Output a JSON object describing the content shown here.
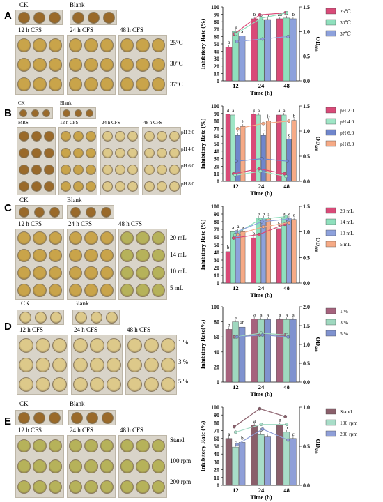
{
  "figure_labels": [
    "A",
    "B",
    "C",
    "D",
    "E"
  ],
  "axis_labels": {
    "x": "Time (h)",
    "y_primary": "Inhibitory Rate (%)",
    "y_primary_d": "Inhibitory Rate(%)",
    "y_secondary_main": "OD",
    "y_secondary_sub": "600"
  },
  "photo_labels": {
    "ck": "CK",
    "blank": "Blank",
    "mrs": "MRS",
    "h12": "12 h CFS",
    "h24": "24 h CFS",
    "h48": "48 h CFS"
  },
  "row_labels": {
    "A": [
      "25°C",
      "30°C",
      "37°C"
    ],
    "B": [
      "pH 2.0",
      "pH 4.0",
      "pH 6.0",
      "pH 8.0"
    ],
    "C": [
      "20 mL",
      "14 mL",
      "10 mL",
      "5 mL"
    ],
    "D": [
      "1 %",
      "3 %",
      "5 %"
    ],
    "E": [
      "Stand",
      "100 rpm",
      "200 rpm"
    ]
  },
  "photo_colors": {
    "well_brown": "#9a6a2a",
    "well_yellow": "#c9a44a",
    "well_light": "#ddc98a",
    "well_green": "#b6b25a"
  },
  "chart_data": [
    {
      "panel": "A",
      "type": "bar",
      "categories": [
        "12",
        "24",
        "48"
      ],
      "xlabel": "Time (h)",
      "ylabel": "Inhibitory Rate (%)",
      "ylabel2": "OD600",
      "ylim": [
        0,
        100
      ],
      "yticks": [
        0,
        10,
        20,
        30,
        40,
        50,
        60,
        70,
        80,
        90,
        100
      ],
      "y2lim": [
        0,
        1.5
      ],
      "y2ticks": [
        "0.0",
        "0.5",
        "1.0",
        "1.5"
      ],
      "legend": "right",
      "series": [
        {
          "name": "25℃",
          "color": "#d94a78",
          "values": [
            46,
            84,
            84
          ],
          "letters": [
            "b",
            "b",
            "ab"
          ],
          "od": [
            0.95,
            1.34,
            1.38
          ]
        },
        {
          "name": "30℃",
          "color": "#8fe0bd",
          "values": [
            67,
            83,
            85
          ],
          "letters": [
            "a",
            "b",
            "a"
          ],
          "od": [
            0.95,
            1.27,
            1.38
          ]
        },
        {
          "name": "37℃",
          "color": "#8da1dc",
          "values": [
            61,
            83,
            84
          ],
          "letters": [
            "a",
            "b",
            "b"
          ],
          "od": [
            0.8,
            0.85,
            0.9
          ]
        }
      ]
    },
    {
      "panel": "B",
      "type": "bar",
      "categories": [
        "12",
        "24",
        "48"
      ],
      "xlabel": "Time (h)",
      "ylabel": "Inhibitory Rate (%)",
      "ylabel2": "OD600",
      "ylim": [
        0,
        100
      ],
      "yticks": [
        0,
        10,
        20,
        30,
        40,
        50,
        60,
        70,
        80,
        90,
        100
      ],
      "y2lim": [
        0,
        1.5
      ],
      "y2ticks": [
        "0.0",
        "0.5",
        "1.0",
        "1.5"
      ],
      "legend": "right",
      "series": [
        {
          "name": "pH 2.0",
          "color": "#d94a78",
          "values": [
            89,
            89,
            88
          ],
          "letters": [
            "a",
            "a",
            "a"
          ],
          "od": [
            0.15,
            0.25,
            0.15
          ]
        },
        {
          "name": "pH 4.0",
          "color": "#9fe6c6",
          "values": [
            88,
            88,
            88
          ],
          "letters": [
            "a",
            "a",
            "a"
          ],
          "od": [
            0.12,
            0.2,
            0.1
          ]
        },
        {
          "name": "pH 6.0",
          "color": "#6f86cc",
          "values": [
            61,
            61,
            56
          ],
          "letters": [
            "c",
            "c",
            "c"
          ],
          "od": [
            0.4,
            0.45,
            0.4
          ]
        },
        {
          "name": "pH 8.0",
          "color": "#f6aa86",
          "values": [
            73,
            80,
            81
          ],
          "letters": [
            "b",
            "b",
            "b"
          ],
          "od": [
            1.05,
            1.15,
            1.2
          ]
        }
      ]
    },
    {
      "panel": "C",
      "type": "bar",
      "categories": [
        "12",
        "24",
        "48"
      ],
      "xlabel": "Time (h)",
      "ylabel": "Inhibitory Rate (%)",
      "ylabel2": "OD600",
      "ylim": [
        0,
        100
      ],
      "yticks": [
        0,
        10,
        20,
        30,
        40,
        50,
        60,
        70,
        80,
        90,
        100
      ],
      "y2lim": [
        0,
        1.5
      ],
      "y2ticks": [
        "0.0",
        "0.5",
        "1.0",
        "1.5"
      ],
      "legend": "right",
      "series": [
        {
          "name": "20 mL",
          "color": "#d94a78",
          "values": [
            41,
            59,
            71
          ],
          "letters": [
            "b",
            "b",
            "b"
          ],
          "od": [
            0.88,
            0.95,
            1.15
          ]
        },
        {
          "name": "14 mL",
          "color": "#8fe0bd",
          "values": [
            67,
            85,
            85
          ],
          "letters": [
            "a",
            "a",
            "a"
          ],
          "od": [
            0.95,
            1.25,
            1.3
          ]
        },
        {
          "name": "10 mL",
          "color": "#8da1dc",
          "values": [
            68,
            85,
            85
          ],
          "letters": [
            "a",
            "a",
            "a"
          ],
          "od": [
            1.0,
            1.2,
            1.25
          ]
        },
        {
          "name": "5 mL",
          "color": "#f6aa86",
          "values": [
            67,
            84,
            83
          ],
          "letters": [
            "a",
            "a",
            "a"
          ],
          "od": [
            0.95,
            1.1,
            1.18
          ]
        }
      ]
    },
    {
      "panel": "D",
      "type": "bar",
      "categories": [
        "12",
        "24",
        "48"
      ],
      "xlabel": "Time (h)",
      "ylabel": "Inhibitory Rate(%)",
      "ylabel2": "OD600",
      "ylim": [
        0,
        100
      ],
      "yticks": [
        0,
        20,
        40,
        60,
        80,
        100
      ],
      "y2lim": [
        0,
        2.0
      ],
      "y2ticks": [
        "0.0",
        "0.5",
        "1.0",
        "1.5",
        "2.0"
      ],
      "legend": "right",
      "series": [
        {
          "name": "1 %",
          "color": "#a6627d",
          "values": [
            70,
            84,
            83
          ],
          "letters": [
            "b",
            "a",
            "a"
          ],
          "od": [
            1.2,
            1.25,
            1.25
          ]
        },
        {
          "name": "3 %",
          "color": "#9fd8bf",
          "values": [
            80,
            83,
            83
          ],
          "letters": [
            "a",
            "a",
            "a"
          ],
          "od": [
            1.2,
            1.3,
            1.25
          ]
        },
        {
          "name": "5 %",
          "color": "#7f92cf",
          "values": [
            73,
            83,
            83
          ],
          "letters": [
            "ab",
            "a",
            "a"
          ],
          "od": [
            1.2,
            1.25,
            1.2
          ]
        }
      ]
    },
    {
      "panel": "E",
      "type": "bar",
      "categories": [
        "12",
        "24",
        "48"
      ],
      "xlabel": "Time (h)",
      "ylabel": "Inhibitory Rate (%)",
      "ylabel2": "OD600",
      "ylim": [
        0,
        100
      ],
      "yticks": [
        0,
        10,
        20,
        30,
        40,
        50,
        60,
        70,
        80,
        90,
        100
      ],
      "y2lim": [
        0,
        1.0
      ],
      "y2ticks": [
        "0.0",
        "0.5",
        "1.0"
      ],
      "legend": "right",
      "series": [
        {
          "name": "Stand",
          "color": "#8a5f6b",
          "values": [
            60,
            77,
            78
          ],
          "letters": [
            "a",
            "a",
            "a"
          ],
          "od": [
            0.75,
            0.98,
            0.88
          ]
        },
        {
          "name": "100 rpm",
          "color": "#a8ddc8",
          "values": [
            49,
            65,
            68
          ],
          "letters": [
            "c",
            "b",
            "b"
          ],
          "od": [
            0.68,
            0.78,
            0.78
          ]
        },
        {
          "name": "200 rpm",
          "color": "#8f9fd8",
          "values": [
            55,
            62,
            60
          ],
          "letters": [
            "b",
            "c",
            "c"
          ],
          "od": [
            0.52,
            0.72,
            0.58
          ]
        }
      ]
    }
  ]
}
